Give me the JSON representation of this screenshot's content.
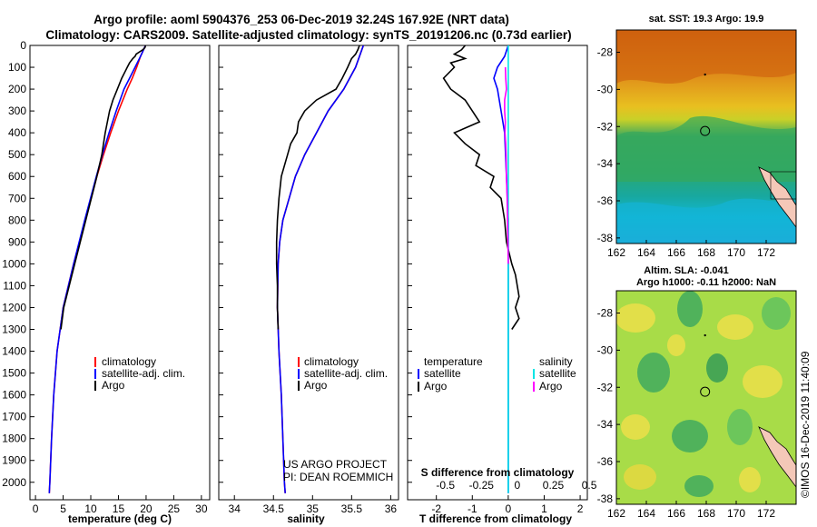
{
  "title": {
    "line1": "Argo profile: aoml 5904376_253 06-Dec-2019 32.24S 167.92E (NRT data)",
    "line2": "Climatology: CARS2009. Satellite-adjusted climatology: synTS_20191206.nc (0.73d earlier)"
  },
  "colors": {
    "argo": "#000000",
    "climatology": "#ff0000",
    "satellite": "#0000ff",
    "sat_salinity": "#00e5e5",
    "argo_salinity_diff": "#ff00ff"
  },
  "credit": {
    "line1": "US ARGO PROJECT",
    "line2": "PI: DEAN ROEMMICH"
  },
  "timestamp": "©IMOS 16-Dec-2019 11:40:09",
  "chart_data": [
    {
      "type": "line",
      "name": "temperature-profile",
      "xlabel": "temperature (deg C)",
      "ylabel": "",
      "xlim": [
        -1,
        31.5
      ],
      "ylim": [
        2080,
        0
      ],
      "xticks": [
        0,
        5,
        10,
        15,
        20,
        25,
        30
      ],
      "yticks": [
        0,
        100,
        200,
        300,
        400,
        500,
        600,
        700,
        800,
        900,
        1000,
        1100,
        1200,
        1300,
        1400,
        1500,
        1600,
        1700,
        1800,
        1900,
        2000
      ],
      "legend": [
        "climatology",
        "satellite-adj. clim.",
        "Argo"
      ],
      "series": [
        {
          "name": "climatology",
          "color": "#ff0000",
          "depth": [
            0,
            50,
            100,
            150,
            200,
            300,
            400,
            500,
            600,
            800,
            1000,
            1200,
            1400,
            1600,
            1800,
            2000,
            2050
          ],
          "values": [
            19.9,
            19.0,
            18.3,
            17.5,
            16.6,
            15.0,
            13.6,
            12.3,
            11.1,
            9.0,
            6.9,
            5.0,
            3.9,
            3.3,
            2.9,
            2.6,
            2.5
          ]
        },
        {
          "name": "satellite-adj. clim.",
          "color": "#0000ff",
          "depth": [
            0,
            50,
            100,
            150,
            200,
            300,
            400,
            500,
            600,
            800,
            1000,
            1200,
            1400,
            1600,
            1800,
            2000,
            2050
          ],
          "values": [
            19.9,
            19.0,
            18.0,
            17.0,
            16.0,
            14.6,
            13.3,
            12.1,
            11.0,
            8.9,
            6.9,
            5.0,
            3.9,
            3.3,
            2.9,
            2.6,
            2.5
          ]
        },
        {
          "name": "Argo",
          "color": "#000000",
          "depth": [
            0,
            10,
            20,
            30,
            40,
            50,
            60,
            80,
            100,
            120,
            150,
            200,
            250,
            300,
            350,
            400,
            450,
            500,
            600,
            700,
            800,
            1000,
            1200,
            1300
          ],
          "values": [
            19.9,
            19.8,
            19.4,
            18.8,
            18.2,
            18.0,
            17.6,
            17.0,
            16.6,
            16.2,
            15.6,
            14.8,
            14.0,
            13.4,
            13.0,
            12.6,
            12.3,
            12.0,
            11.1,
            10.1,
            9.1,
            7.1,
            5.1,
            4.6
          ]
        }
      ]
    },
    {
      "type": "line",
      "name": "salinity-profile",
      "xlabel": "salinity",
      "xlim": [
        33.8,
        36.1
      ],
      "ylim": [
        2080,
        0
      ],
      "xticks": [
        34,
        34.5,
        35,
        35.5,
        36
      ],
      "legend": [
        "climatology",
        "satellite-adj. clim.",
        "Argo"
      ],
      "series": [
        {
          "name": "climatology",
          "color": "#ff0000",
          "depth": [
            0,
            50,
            100,
            200,
            300,
            400,
            500,
            600,
            700,
            800,
            900,
            1000,
            1200,
            1400,
            1600,
            1800,
            2000,
            2050
          ],
          "values": [
            35.65,
            35.6,
            35.55,
            35.4,
            35.2,
            35.05,
            34.9,
            34.78,
            34.7,
            34.62,
            34.58,
            34.56,
            34.55,
            34.57,
            34.6,
            34.62,
            34.64,
            34.65
          ]
        },
        {
          "name": "satellite-adj. clim.",
          "color": "#0000ff",
          "depth": [
            0,
            50,
            100,
            200,
            300,
            400,
            500,
            600,
            700,
            800,
            900,
            1000,
            1200,
            1400,
            1600,
            1800,
            2000,
            2050
          ],
          "values": [
            35.65,
            35.6,
            35.55,
            35.4,
            35.2,
            35.05,
            34.9,
            34.78,
            34.7,
            34.62,
            34.58,
            34.56,
            34.55,
            34.57,
            34.6,
            34.62,
            34.64,
            34.65
          ]
        },
        {
          "name": "Argo",
          "color": "#000000",
          "depth": [
            0,
            20,
            40,
            60,
            100,
            150,
            200,
            250,
            300,
            350,
            400,
            450,
            500,
            600,
            700,
            800,
            900,
            1000,
            1100,
            1200,
            1300
          ],
          "values": [
            35.6,
            35.58,
            35.55,
            35.5,
            35.45,
            35.38,
            35.3,
            35.05,
            34.9,
            34.82,
            34.8,
            34.72,
            34.68,
            34.6,
            34.57,
            34.55,
            34.54,
            34.54,
            34.55,
            34.55,
            34.56
          ]
        }
      ]
    },
    {
      "type": "line",
      "name": "difference-profile",
      "xlabel": "T difference from climatology",
      "xlabel2": "S difference from climatology",
      "xlim": [
        -2.8,
        2.2
      ],
      "ylim": [
        2080,
        0
      ],
      "xticks": [
        -2,
        -1,
        0,
        1,
        2
      ],
      "xticks2": [
        "-0.5",
        "-0.25",
        "0",
        "0.25",
        "0.5"
      ],
      "legend_left_title": "temperature",
      "legend_left": [
        "satellite",
        "Argo"
      ],
      "legend_right_title": "salinity",
      "legend_right": [
        "satellite",
        "Argo"
      ],
      "series": [
        {
          "name": "T satellite",
          "color": "#0000ff",
          "depth": [
            0,
            50,
            100,
            150,
            200,
            300,
            400,
            600,
            800,
            1000,
            1200,
            1400,
            1600,
            1800,
            2000,
            2050
          ],
          "values": [
            0,
            -0.1,
            -0.3,
            -0.4,
            -0.3,
            -0.2,
            -0.1,
            -0.05,
            0,
            0,
            0,
            0,
            0,
            0,
            0,
            0
          ]
        },
        {
          "name": "T Argo",
          "color": "#000000",
          "depth": [
            0,
            20,
            40,
            60,
            80,
            100,
            150,
            200,
            250,
            300,
            350,
            400,
            450,
            500,
            550,
            600,
            650,
            700,
            800,
            900,
            1000,
            1050,
            1100,
            1150,
            1200,
            1250,
            1300
          ],
          "values": [
            -1.2,
            -1.3,
            -1.5,
            -1.2,
            -1.6,
            -1.5,
            -1.8,
            -1.6,
            -1.2,
            -1.0,
            -0.8,
            -1.5,
            -1.2,
            -0.8,
            -0.9,
            -0.4,
            -0.5,
            -0.2,
            -0.1,
            -0.05,
            0.1,
            0.2,
            0.25,
            0.3,
            0.2,
            0.3,
            0.1
          ]
        },
        {
          "name": "S satellite",
          "color": "#00e5e5",
          "depth": [
            0,
            100,
            200,
            400,
            800,
            1200,
            1600,
            2000,
            2050
          ],
          "values": [
            0,
            0,
            0,
            0,
            0,
            0,
            0,
            0,
            0
          ]
        },
        {
          "name": "S Argo",
          "color": "#ff00ff",
          "depth": [
            100,
            150,
            200,
            250,
            300,
            350,
            400,
            450,
            500,
            600,
            700,
            800,
            900,
            1000
          ],
          "values": [
            -0.08,
            -0.07,
            -0.05,
            -0.1,
            -0.1,
            -0.08,
            -0.09,
            -0.07,
            -0.06,
            -0.05,
            -0.03,
            -0.02,
            -0.01,
            0
          ]
        }
      ]
    },
    {
      "type": "heatmap",
      "name": "sst-map",
      "title": "sat. SST: 19.3 Argo: 19.9",
      "xticks": [
        162,
        164,
        166,
        168,
        170,
        172
      ],
      "yticks": [
        -28,
        -30,
        -32,
        -34,
        -36,
        -38
      ],
      "xlim": [
        162,
        174
      ],
      "ylim": [
        -38.3,
        -26.8
      ],
      "float_position": [
        167.92,
        -32.24
      ]
    },
    {
      "type": "heatmap",
      "name": "sla-map",
      "title_line1": "Altim. SLA: -0.041",
      "title_line2": "Argo h1000: -0.11 h2000: NaN",
      "xticks": [
        162,
        164,
        166,
        168,
        170,
        172
      ],
      "yticks": [
        -28,
        -30,
        -32,
        -34,
        -36,
        -38
      ],
      "xlim": [
        162,
        174
      ],
      "ylim": [
        -38.3,
        -26.8
      ],
      "float_position": [
        167.92,
        -32.24
      ]
    }
  ]
}
